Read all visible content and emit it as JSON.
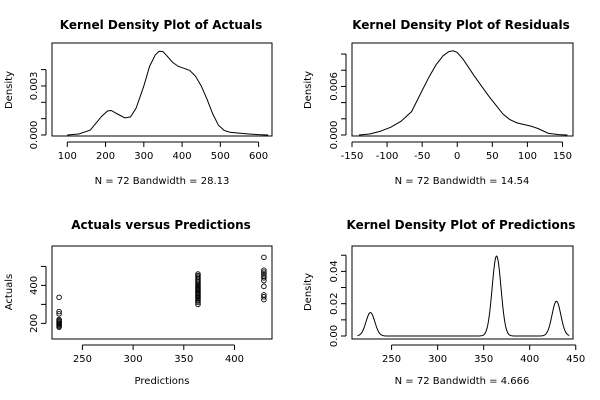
{
  "chart_data": [
    {
      "type": "line",
      "title": "Kernel Density Plot of Actuals",
      "xlabel": "N = 72   Bandwidth = 28.13",
      "ylabel": "Density",
      "xlim": [
        60,
        635
      ],
      "ylim": [
        0,
        0.0052
      ],
      "xticks": [
        100,
        200,
        300,
        400,
        500,
        600
      ],
      "yticks": [
        0,
        0.001,
        0.002,
        0.003,
        0.004
      ],
      "yticklabels": [
        "0.000",
        "",
        "",
        "0.003",
        ""
      ],
      "x": [
        100,
        130,
        160,
        190,
        205,
        215,
        230,
        250,
        265,
        280,
        300,
        315,
        330,
        340,
        350,
        360,
        375,
        390,
        405,
        420,
        435,
        450,
        465,
        480,
        495,
        510,
        525,
        545,
        570,
        600,
        625
      ],
      "y": [
        0.0,
        6e-05,
        0.0003,
        0.00115,
        0.00147,
        0.0015,
        0.0013,
        0.00105,
        0.0011,
        0.00165,
        0.003,
        0.0042,
        0.0049,
        0.00512,
        0.0051,
        0.00485,
        0.00445,
        0.0042,
        0.00408,
        0.00395,
        0.0036,
        0.003,
        0.0022,
        0.0013,
        0.0006,
        0.00028,
        0.00017,
        0.00012,
        7e-05,
        2e-05,
        0.0
      ]
    },
    {
      "type": "line",
      "title": "Kernel Density Plot of Residuals",
      "xlabel": "N = 72   Bandwidth = 14.54",
      "ylabel": "Density",
      "xlim": [
        -150,
        165
      ],
      "ylim": [
        0,
        0.0105
      ],
      "xticks": [
        -150,
        -100,
        -50,
        0,
        50,
        100,
        150
      ],
      "yticks": [
        0,
        0.002,
        0.004,
        0.006,
        0.008,
        0.01
      ],
      "yticklabels": [
        "0.000",
        "",
        "",
        "0.006",
        "",
        ""
      ],
      "x": [
        -140,
        -125,
        -110,
        -95,
        -80,
        -65,
        -50,
        -40,
        -30,
        -20,
        -12,
        -6,
        0,
        8,
        15,
        25,
        35,
        45,
        55,
        65,
        75,
        85,
        95,
        105,
        115,
        130,
        145,
        157
      ],
      "y": [
        0.0,
        0.00012,
        0.00045,
        0.00095,
        0.0017,
        0.0029,
        0.0055,
        0.0072,
        0.0087,
        0.0098,
        0.0103,
        0.0104,
        0.0102,
        0.0094,
        0.0085,
        0.0072,
        0.006,
        0.0048,
        0.0037,
        0.0026,
        0.0019,
        0.0015,
        0.0013,
        0.0011,
        0.0008,
        0.0002,
        5e-05,
        0.0
      ]
    },
    {
      "type": "scatter",
      "title": "Actuals versus Predictions",
      "xlabel": "Predictions",
      "ylabel": "Actuals",
      "xlim": [
        220,
        437
      ],
      "ylim": [
        165,
        555
      ],
      "xticks": [
        250,
        300,
        350,
        400
      ],
      "yticks": [
        200,
        300,
        400,
        500
      ],
      "yticklabels": [
        "200",
        "",
        "400",
        ""
      ],
      "points": [
        [
          227,
          180
        ],
        [
          227,
          186
        ],
        [
          227,
          192
        ],
        [
          227,
          197
        ],
        [
          227,
          202
        ],
        [
          227,
          208
        ],
        [
          227,
          214
        ],
        [
          227,
          220
        ],
        [
          227,
          250
        ],
        [
          227,
          262
        ],
        [
          227,
          337
        ],
        [
          364,
          300
        ],
        [
          364,
          310
        ],
        [
          364,
          318
        ],
        [
          364,
          325
        ],
        [
          364,
          332
        ],
        [
          364,
          338
        ],
        [
          364,
          344
        ],
        [
          364,
          350
        ],
        [
          364,
          356
        ],
        [
          364,
          362
        ],
        [
          364,
          368
        ],
        [
          364,
          374
        ],
        [
          364,
          380
        ],
        [
          364,
          386
        ],
        [
          364,
          392
        ],
        [
          364,
          398
        ],
        [
          364,
          405
        ],
        [
          364,
          412
        ],
        [
          364,
          420
        ],
        [
          364,
          428
        ],
        [
          364,
          436
        ],
        [
          364,
          444
        ],
        [
          364,
          452
        ],
        [
          364,
          460
        ],
        [
          429,
          325
        ],
        [
          429,
          340
        ],
        [
          429,
          350
        ],
        [
          429,
          395
        ],
        [
          429,
          425
        ],
        [
          429,
          440
        ],
        [
          429,
          450
        ],
        [
          429,
          460
        ],
        [
          429,
          470
        ],
        [
          429,
          480
        ],
        [
          429,
          548
        ]
      ]
    },
    {
      "type": "line",
      "title": "Kernel Density Plot of Predictions",
      "xlabel": "N = 72   Bandwidth = 4.666",
      "ylabel": "Density",
      "xlim": [
        207,
        447
      ],
      "ylim": [
        0,
        0.052
      ],
      "xticks": [
        250,
        300,
        350,
        400,
        450
      ],
      "yticks": [
        0,
        0.01,
        0.02,
        0.03,
        0.04,
        0.05
      ],
      "yticklabels": [
        "0.00",
        "",
        "0.02",
        "",
        "0.04",
        ""
      ],
      "peaks": [
        {
          "center": 227,
          "height": 0.0145,
          "sd": 4.8
        },
        {
          "center": 364,
          "height": 0.0495,
          "sd": 4.8
        },
        {
          "center": 429,
          "height": 0.0215,
          "sd": 4.8
        }
      ],
      "x_range": [
        213,
        443
      ]
    }
  ]
}
